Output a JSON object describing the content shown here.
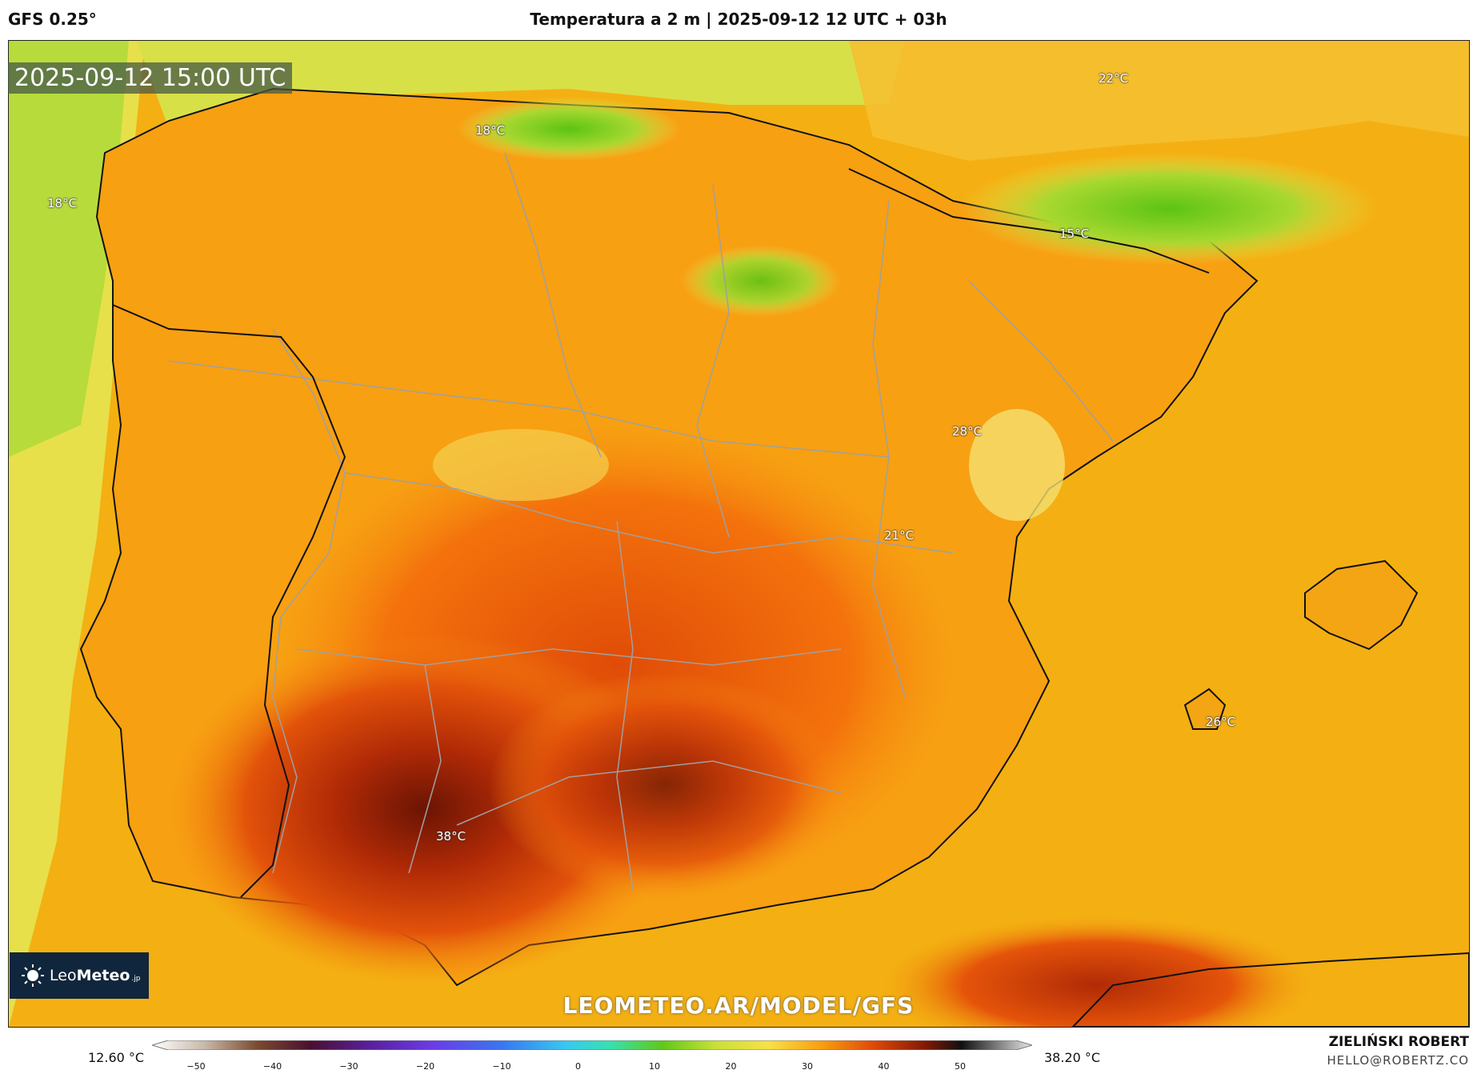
{
  "header": {
    "model": "GFS 0.25°",
    "title": "Temperatura a 2 m | 2025-09-12 12 UTC + 03h"
  },
  "map": {
    "timestamp": "2025-09-12 15:00 UTC",
    "labels": [
      {
        "text": "18°C",
        "lon": -9.6,
        "lat": 43.0
      },
      {
        "text": "18°C",
        "lon": -5.2,
        "lat": 43.7
      },
      {
        "text": "22°C",
        "lon": 1.2,
        "lat": 44.2
      },
      {
        "text": "15°C",
        "lon": 0.8,
        "lat": 42.7
      },
      {
        "text": "28°C",
        "lon": -0.3,
        "lat": 40.8
      },
      {
        "text": "21°C",
        "lon": -1.0,
        "lat": 39.8
      },
      {
        "text": "26°C",
        "lon": 2.3,
        "lat": 38.0
      },
      {
        "text": "38°C",
        "lon": -5.6,
        "lat": 36.9
      }
    ],
    "colors": {
      "ocean": "#f4b012",
      "atlantic": "#b9dc3c",
      "hot": "#d33a08",
      "hottest": "#7a1804",
      "cool": "#62c414",
      "land": "#f7a414",
      "border": "#222222",
      "region_border": "#9a9a9a"
    }
  },
  "branding": {
    "logo_icon": "sun-icon",
    "logo_name_light": "Leo",
    "logo_name_bold": "Meteo",
    "logo_suffix": ".jp",
    "watermark": "LEOMETEO.AR/MODEL/GFS"
  },
  "colorbar": {
    "min_label": "12.60 °C",
    "max_label": "38.20 °C",
    "ticks": [
      "−50",
      "−40",
      "−30",
      "−20",
      "−10",
      "0",
      "10",
      "20",
      "30",
      "40",
      "50"
    ]
  },
  "footer": {
    "author": "ZIELIŃSKI ROBERT",
    "email": "HELLO@ROBERTZ.CO"
  }
}
